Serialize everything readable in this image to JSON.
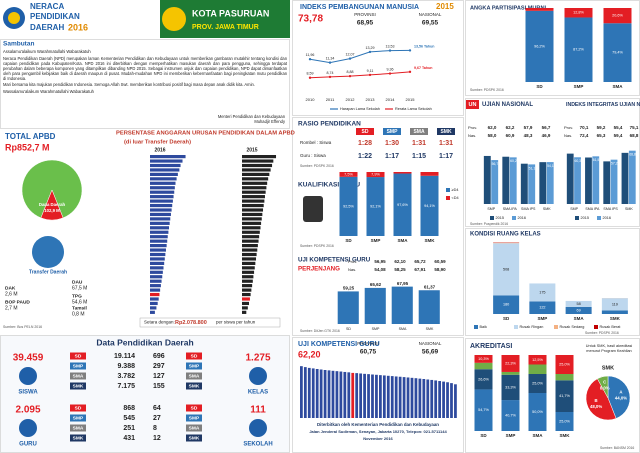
{
  "header": {
    "title1": "NERACA",
    "title2": "PENDIDIKAN",
    "title3": "DAERAH",
    "year": "2016",
    "region": "KOTA PASURUAN",
    "province": "PROV. JAWA TIMUR"
  },
  "sambutan": {
    "title": "Sambutan",
    "paragraphs": [
      "Assalamu'alaikum Warahmatullahi Wabarakatuh",
      "Neraca Pendidikan Daerah (NPD) merupakan laman Kementerian Pendidikan dan Kebudayaan untuk memberikan gambaran mutakhir tentang kondisi dan capaian pendidikan pada Kabupaten/Kota. NPD 2016 ini diterbitkan dengan memperhatikan masukan daerah dan para pengguna, sehingga terdapat perubahan dalam beberapa komponen yang ditampilkan dibanding NPD 2015. Sebagai instrumen unjuk dan capaian pendidikan, NPD dapat dimanfaatkan oleh para pengambil kebijakan baik di daerah maupun di pusat. Mudah-mudahan NPD ini memberikan kebermanfaatan bagi peningkatan mutu pendidikan di Indonesia.",
      "Mari bersama kita majukan pendidikan Indonesia. Semoga Allah Swt. memberikan kontribusi positif bagi masa depan anak didik kita. Amin.",
      "Wassalamu'alaikum Warahmatullahi Wabarakatuh"
    ],
    "signature": [
      "Menteri Pendidikan dan Kebudayaan",
      "Muhadjir Effendy"
    ]
  },
  "apbd": {
    "title": "TOTAL APBD",
    "total": "Rp852,7 M",
    "slices": [
      {
        "label": null,
        "value": 749.8,
        "color": "#6abf4b"
      },
      {
        "label": "Dana Daerah",
        "value": 102.9,
        "value_label": "102,9 M",
        "color": "#e31e24"
      }
    ],
    "transfer": "Transfer Daerah",
    "items": [
      {
        "label": "DAU",
        "value": "67,5 M"
      },
      {
        "label": "TPG",
        "value": "54,6 M"
      },
      {
        "label": "Tamsil",
        "value": "0,8 M"
      },
      {
        "label": "DAK",
        "value": "2,6 M"
      },
      {
        "label": "BOP PAUD",
        "value": "2,7 M"
      }
    ],
    "source": "Sumber: Bos PELN 2016"
  },
  "persentase": {
    "title": "PERSENTASE ANGGARAN URUSAN PENDIDIKAN DALAM APBD",
    "subtitle": "(di luar Transfer Daerah)",
    "xlim": [
      0,
      45
    ],
    "highlight_color": "#e31e24",
    "panels": [
      {
        "year": "2016",
        "color": "#2e4a9e",
        "highlight": 31,
        "values": [
          42.1,
          38.5,
          36.2,
          34.8,
          33.0,
          31.5,
          30.2,
          29.4,
          28.7,
          27.9,
          27.1,
          26.3,
          25.6,
          24.8,
          24.0,
          23.3,
          22.5,
          21.8,
          21.0,
          20.4,
          19.7,
          18.9,
          18.2,
          17.5,
          16.8,
          16.0,
          15.2,
          14.5,
          13.7,
          12.9,
          12.0,
          11.2,
          10.3,
          9.1,
          7.6,
          5.8
        ]
      },
      {
        "year": "2015",
        "color": "#222222",
        "highlight": 32,
        "values": [
          40.3,
          37.1,
          35.6,
          33.9,
          32.4,
          31.0,
          29.8,
          28.9,
          28.0,
          27.2,
          26.5,
          25.7,
          24.9,
          24.1,
          23.4,
          22.6,
          21.9,
          21.1,
          20.3,
          19.6,
          18.8,
          18.1,
          17.3,
          16.6,
          15.8,
          15.1,
          14.3,
          13.5,
          12.8,
          12.0,
          11.1,
          10.2,
          9.4,
          8.3,
          6.9,
          5.1
        ]
      }
    ],
    "note_label": "Setara dengan:",
    "note_value": "Rp2.078.800",
    "note_suffix": "per siswa per tahun"
  },
  "data_pendidikan": {
    "title": "Data Pendidikan Daerah",
    "groups": [
      {
        "label": "SISWA",
        "total": "39.459",
        "items": [
          {
            "level": "SD",
            "value": "19.114"
          },
          {
            "level": "SMP",
            "value": "9.388"
          },
          {
            "level": "SMA",
            "value": "3.782"
          },
          {
            "level": "SMK",
            "value": "7.175"
          }
        ]
      },
      {
        "label": "KELAS",
        "total": "1.275",
        "items": [
          {
            "level": "SD",
            "value": "696"
          },
          {
            "level": "SMP",
            "value": "297"
          },
          {
            "level": "SMA",
            "value": "127"
          },
          {
            "level": "SMK",
            "value": "155"
          }
        ]
      },
      {
        "label": "GURU",
        "total": "2.095",
        "items": [
          {
            "level": "SD",
            "value": "868"
          },
          {
            "level": "SMP",
            "value": "545"
          },
          {
            "level": "SMA",
            "value": "251"
          },
          {
            "level": "SMK",
            "value": "431"
          }
        ]
      },
      {
        "label": "SEKOLAH",
        "total": "111",
        "items": [
          {
            "level": "SD",
            "value": "64"
          },
          {
            "level": "SMP",
            "value": "27"
          },
          {
            "level": "SMA",
            "value": "8"
          },
          {
            "level": "SMK",
            "value": "12"
          }
        ]
      }
    ]
  },
  "ipm": {
    "title": "INDEKS PEMBANGUNAN MANUSIA",
    "year": "2015",
    "value": "73,78",
    "provinsi_label": "PROVINSI",
    "provinsi": "68,95",
    "nasional_label": "NASIONAL",
    "nasional": "69,55",
    "years": [
      "2010",
      "2011",
      "2012",
      "2013",
      "2014",
      "2015"
    ],
    "ylim": [
      6,
      16
    ],
    "series": [
      {
        "name": "Harapan Lama Sekolah",
        "color": "#2e75b6",
        "values": [
          11.96,
          11.34,
          12.07,
          13.29,
          13.53,
          13.56
        ],
        "value_labels": [
          "11,96",
          "11,34",
          "12,07",
          "13,29",
          "13,53",
          "13,56 Tahun"
        ]
      },
      {
        "name": "Rerata Lama Sekolah",
        "color": "#e31e24",
        "values": [
          8.59,
          8.74,
          8.88,
          9.11,
          9.36,
          9.67
        ],
        "value_labels": [
          "8,59",
          "8,74",
          "8,88",
          "9,11",
          "9,36",
          "9,67 Tahun"
        ]
      }
    ]
  },
  "rasio": {
    "title": "RASIO PENDIDIKAN",
    "levels": [
      "SD",
      "SMP",
      "SMA",
      "SMK"
    ],
    "rows": [
      {
        "label": "Rombel : Siswa",
        "values": [
          "1:28",
          "1:30",
          "1:31",
          "1:31"
        ]
      },
      {
        "label": "Guru : Siswa",
        "values": [
          "1:22",
          "1:17",
          "1:15",
          "1:17"
        ]
      }
    ],
    "source": "Sumber: PDSPK 2016"
  },
  "kualifikasi": {
    "title": "KUALIFIKASI GURU",
    "categories": [
      "SD",
      "SMP",
      "SMA",
      "SMK"
    ],
    "ylim": [
      0,
      100
    ],
    "series": [
      {
        "name": "≥D4",
        "color": "#2e75b6",
        "values": [
          92.5,
          92.1,
          97.6,
          94.1
        ],
        "value_labels": [
          "92,5%",
          "92,1%",
          "97,6%",
          "94,1%"
        ]
      },
      {
        "name": "<D4",
        "color": "#e31e24",
        "values": [
          7.5,
          7.9,
          2.4,
          5.9
        ],
        "value_labels": [
          "7,5%",
          "7,9%",
          "2,4%",
          "5,9%"
        ]
      }
    ],
    "source": "Sumber: PDSPK 2016"
  },
  "ukg_jenjang": {
    "title": "UJI KOMPETENSI GURU",
    "subtitle": "PERJENJANG",
    "categories": [
      "SD",
      "SMP",
      "SMA",
      "SMK"
    ],
    "ylim": [
      0,
      80
    ],
    "rows": [
      {
        "label": "Prov.",
        "values": [
          "56,95",
          "62,10",
          "65,72",
          "60,59"
        ]
      },
      {
        "label": "Nas.",
        "values": [
          "54,08",
          "58,25",
          "67,91",
          "58,90"
        ]
      }
    ],
    "series": [
      {
        "color": "#2e75b6",
        "values": [
          59.25,
          65.62,
          67.95,
          61.37
        ],
        "value_labels": [
          "59,25",
          "65,62",
          "67,95",
          "61,37"
        ]
      }
    ],
    "source": "Sumber: DitJen GTK 2016"
  },
  "apm": {
    "title": "ANGKA PARTISIPASI MURNI",
    "categories": [
      "SD",
      "SMP",
      "SMA"
    ],
    "ylim": [
      0,
      100
    ],
    "series": [
      {
        "color": "#2e75b6",
        "values": [
          96.2,
          87.2,
          79.4
        ],
        "value_labels": [
          "96,2%",
          "87,2%",
          "79,4%"
        ]
      },
      {
        "color": "#e31e24",
        "values": [
          3.8,
          12.8,
          20.6
        ],
        "value_labels": [
          "3,8%",
          "12,8%",
          "20,6%"
        ]
      }
    ],
    "source": "Sumber: PDSPK 2016"
  },
  "un": {
    "badge": "UN",
    "title": "UJIAN NASIONAL",
    "categories": [
      "SMP",
      "SMA IPA",
      "SMA IPS",
      "SMK"
    ],
    "ylim": [
      0,
      80
    ],
    "rows": [
      {
        "label": "Prov.",
        "values": [
          "62,0",
          "62,2",
          "57,9",
          "56,7"
        ]
      },
      {
        "label": "Nas.",
        "values": [
          "58,0",
          "60,9",
          "48,3",
          "46,9"
        ]
      }
    ],
    "series": [
      {
        "name": "2015",
        "color": "#1f4e79",
        "values": [
          62.0,
          61.0,
          52.0,
          54.0
        ]
      },
      {
        "name": "2016",
        "color": "#5b9bd5",
        "values": [
          56.7,
          60.2,
          51.1,
          54.1
        ],
        "value_labels": [
          "56,7",
          "60,2",
          "51,1",
          "54,1"
        ]
      }
    ]
  },
  "integritas": {
    "title": "INDEKS INTEGRITAS UJIAN NASIONAL",
    "categories": [
      "SMP",
      "SMA IPA",
      "SMA IPS",
      "SMK"
    ],
    "ylim": [
      0,
      80
    ],
    "rows": [
      {
        "label": "Prov.",
        "values": [
          "70,1",
          "59,2",
          "55,4",
          "75,1"
        ]
      },
      {
        "label": "Nas.",
        "values": [
          "72,4",
          "65,3",
          "59,4",
          "68,8"
        ]
      }
    ],
    "series": [
      {
        "name": "2015",
        "color": "#1f4e79",
        "values": [
          65.0,
          60.0,
          55.0,
          66.0
        ]
      },
      {
        "name": "2016",
        "color": "#5b9bd5",
        "values": [
          60.3,
          61.5,
          57.2,
          68.8
        ],
        "value_labels": [
          "60,3",
          "61,5",
          "57,2",
          "68,8"
        ]
      }
    ],
    "source": "Sumber: Puspendik 2016"
  },
  "ruang_kelas": {
    "title": "KONDISI RUANG KELAS",
    "categories": [
      "SD",
      "SMP",
      "SMA",
      "SMK"
    ],
    "ylim": [
      0,
      700
    ],
    "series": [
      {
        "name": "Baik",
        "color": "#2e75b6",
        "values": [
          180,
          122,
          69,
          35
        ],
        "value_labels": [
          "180",
          "122",
          "69",
          "35"
        ]
      },
      {
        "name": "Rusak Ringan",
        "color": "#bdd7ee",
        "values": [
          508,
          175,
          58,
          119
        ],
        "value_labels": [
          "508",
          "175",
          "58",
          "119"
        ]
      },
      {
        "name": "Rusak Sedang",
        "color": "#f4b183",
        "values": [
          5,
          0,
          0,
          1
        ]
      },
      {
        "name": "Rusak Berat",
        "color": "#c00000",
        "values": [
          3,
          0,
          0,
          0
        ]
      }
    ],
    "source": "Sumber: PDSPK 2016"
  },
  "ukg": {
    "title": "UJI KOMPETENSI GURU",
    "value": "62,20",
    "provinsi_label": "PROVINSI",
    "provinsi": "60,75",
    "nasional_label": "NASIONAL",
    "nasional": "56,69",
    "ylim": [
      0,
      80
    ],
    "color": "#2e4a9e",
    "highlight": 13,
    "highlight_color": "#e31e24",
    "values": [
      71.5,
      70.2,
      69.1,
      68.4,
      67.6,
      66.9,
      66.2,
      65.7,
      65.1,
      64.6,
      64.1,
      63.5,
      63.0,
      62.2,
      61.9,
      61.4,
      60.9,
      60.5,
      60.0,
      59.6,
      59.1,
      58.7,
      58.2,
      57.8,
      57.3,
      56.9,
      56.4,
      55.9,
      55.4,
      54.9,
      54.3,
      53.8,
      53.1,
      52.5,
      51.8,
      51.0,
      50.2,
      49.3,
      48.1,
      46.5
    ],
    "publisher": [
      "Diterbitkan oleh Kementerian Pendidikan dan Kebudayaan",
      "Jalan Jenderal Sudirman, Senayan, Jakarta 10270, Telepon: 021-5711144",
      "November 2016"
    ]
  },
  "akreditasi": {
    "title": "AKREDITASI",
    "categories": [
      "SD",
      "SMP",
      "SMA",
      "SMK"
    ],
    "ylim": [
      0,
      100
    ],
    "series": [
      {
        "name": "A",
        "color": "#2e75b6",
        "values": [
          54.7,
          40.7,
          50.0,
          25.0
        ],
        "value_labels": [
          "54,7%",
          "40,7%",
          "50,0%",
          "25,0%"
        ]
      },
      {
        "name": "B",
        "color": "#1f4e79",
        "values": [
          26.6,
          33.3,
          25.0,
          41.7
        ],
        "value_labels": [
          "26,6%",
          "33,3%",
          "25,0%",
          "41,7%"
        ]
      },
      {
        "name": "C",
        "color": "#70ad47",
        "values": [
          8.4,
          3.7,
          12.5,
          8.3
        ]
      },
      {
        "name": "Belum",
        "color": "#e31e24",
        "values": [
          10.3,
          22.3,
          12.5,
          25.0
        ],
        "value_labels": [
          "10,3%",
          "22,3%",
          "12,5%",
          "25,0%"
        ]
      }
    ],
    "pie_note": "Untuk SMK, hasil akreditasi menurut Program Keahlian",
    "pie_label": "SMK",
    "pie": [
      {
        "label": "A",
        "value": 44.0,
        "value_label": "44,0%",
        "color": "#2e75b6"
      },
      {
        "label": "B",
        "value": 48.0,
        "value_label": "48,0%",
        "color": "#e31e24"
      },
      {
        "label": "C",
        "value": 8.0,
        "value_label": "8,0%",
        "color": "#70ad47"
      }
    ],
    "source": "Sumber: BANSM 2016"
  }
}
